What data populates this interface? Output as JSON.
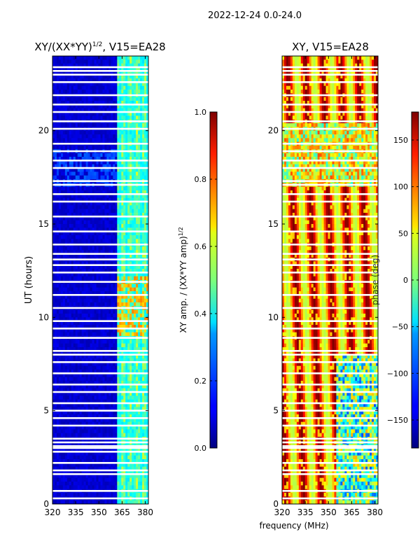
{
  "suptitle": "2022-12-24 0.0-24.0",
  "chart_data": [
    {
      "type": "heatmap",
      "title": "XY/(XX*YY)",
      "title_exponent": "1/2",
      "title_suffix": ", V15=EA28",
      "xlabel": "frequency (MHz)",
      "ylabel": "UT (hours)",
      "xlim": [
        320,
        382
      ],
      "ylim": [
        0,
        24
      ],
      "xticks": [
        320,
        335,
        350,
        365,
        380
      ],
      "yticks": [
        0,
        5,
        10,
        15,
        20
      ],
      "colormap": "jet",
      "colorbar": {
        "label": "XY amp. / (XX*YY amp)",
        "label_exponent": "1/2",
        "range": [
          0.0,
          1.0
        ],
        "ticks": [
          "0.0",
          "0.2",
          "0.4",
          "0.6",
          "0.8",
          "1.0"
        ],
        "tick_values": [
          0.0,
          0.2,
          0.4,
          0.6,
          0.8,
          1.0
        ]
      },
      "description_values": {
        "low_band_typical": 0.05,
        "high_band_typical": 0.35,
        "high_band_peak": 0.75,
        "high_band_start_mhz": 362
      }
    },
    {
      "type": "heatmap",
      "title": "XY, V15=EA28",
      "xlabel": "frequency (MHz)",
      "ylabel": "",
      "xlim": [
        320,
        382
      ],
      "ylim": [
        0,
        24
      ],
      "xticks": [
        320,
        335,
        350,
        365,
        380
      ],
      "yticks": [
        0,
        5,
        10,
        15,
        20
      ],
      "colormap": "jet",
      "colorbar": {
        "label": "phase (deg)",
        "range": [
          -180,
          180
        ],
        "ticks": [
          "−150",
          "−100",
          "−50",
          "0",
          "50",
          "100",
          "150"
        ],
        "tick_values": [
          -150,
          -100,
          -50,
          0,
          50,
          100,
          150
        ]
      }
    }
  ],
  "flagged_ut_hours": [
    0.3,
    0.7,
    1.6,
    1.8,
    2.2,
    2.8,
    3.0,
    3.1,
    3.3,
    3.5,
    4.2,
    4.6,
    5.0,
    5.4,
    6.0,
    6.4,
    7.0,
    7.6,
    8.0,
    8.2,
    8.9,
    9.4,
    9.8,
    10.5,
    11.2,
    11.9,
    12.4,
    12.8,
    13.1,
    13.4,
    13.9,
    14.6,
    15.4,
    16.2,
    16.6,
    17.1,
    17.3,
    18.0,
    18.4,
    18.9,
    19.3,
    20.1,
    20.5,
    21.0,
    21.4,
    21.9,
    22.6,
    23.0,
    23.2,
    23.4
  ]
}
